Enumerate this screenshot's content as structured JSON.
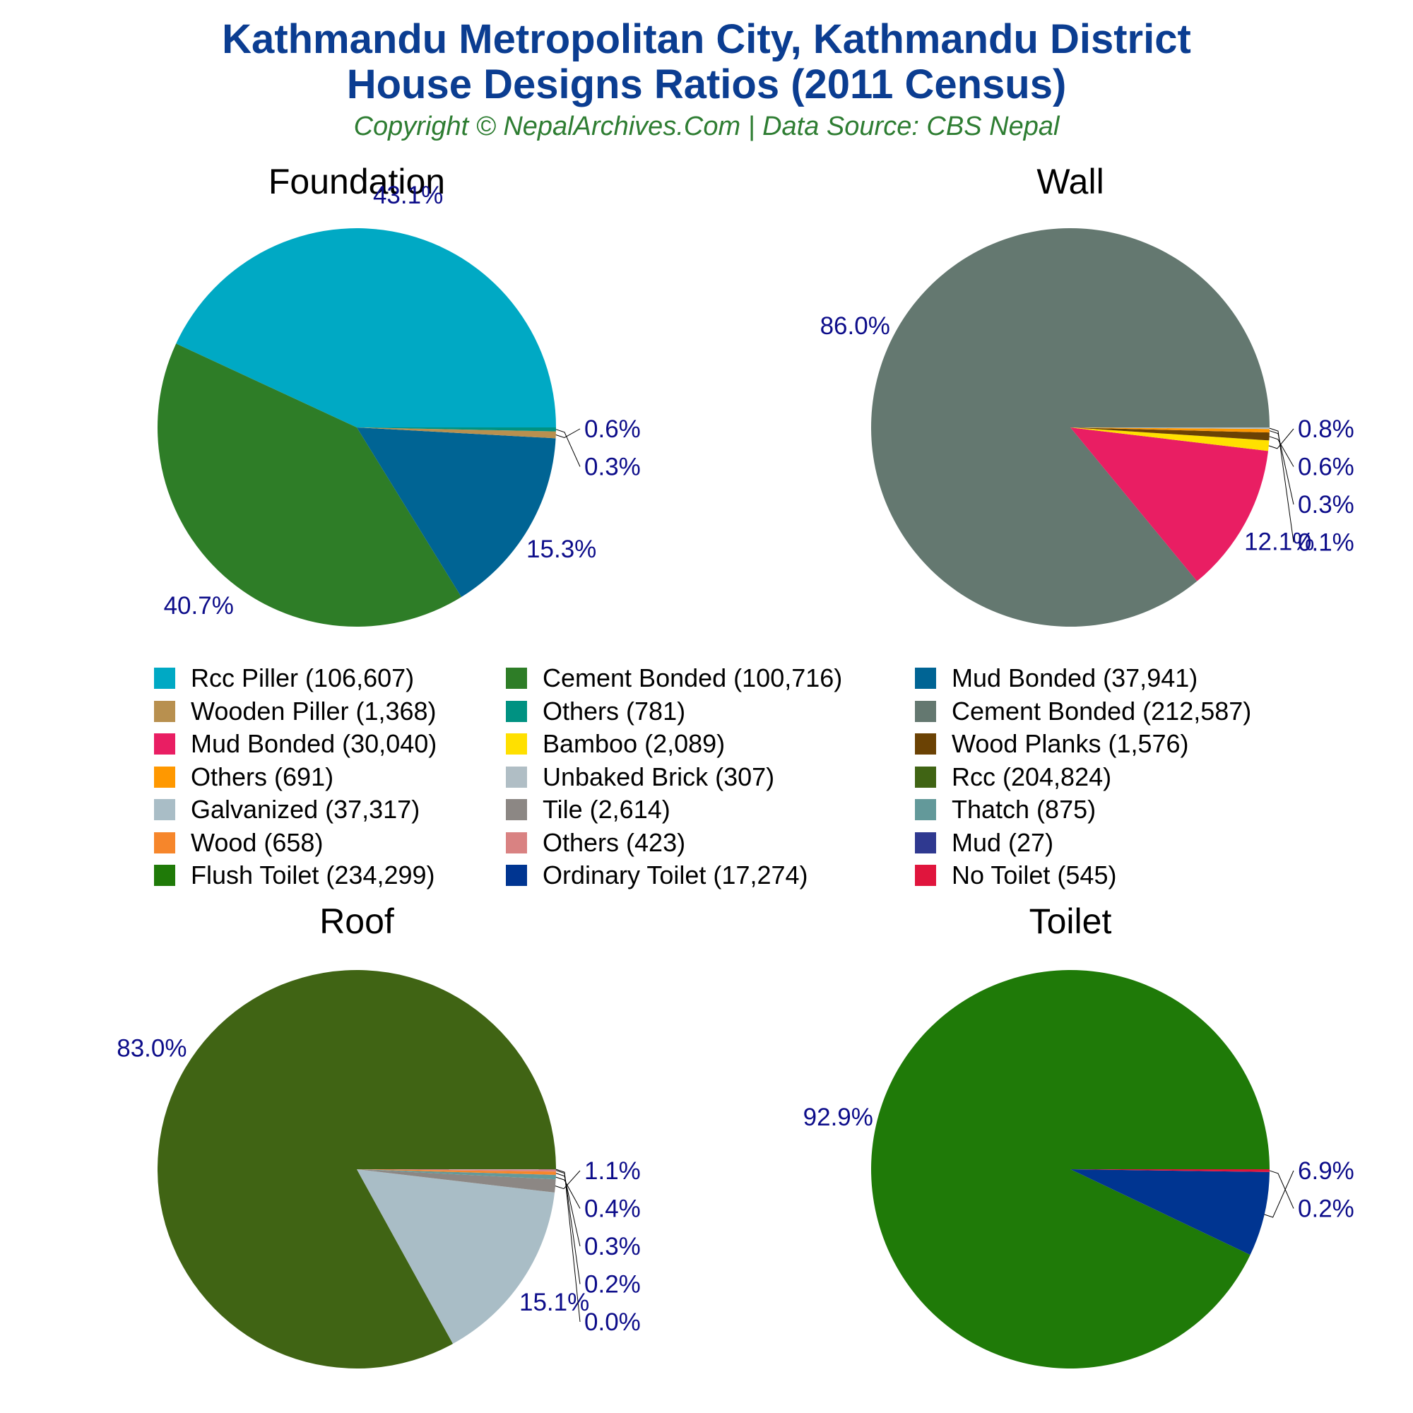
{
  "title_line1": "Kathmandu Metropolitan City, Kathmandu District",
  "title_line2": "House Designs Ratios (2011 Census)",
  "subtitle": "Copyright © NepalArchives.Com | Data Source: CBS Nepal",
  "chart_data": [
    {
      "type": "pie",
      "title": "Foundation",
      "slices": [
        {
          "label": "Rcc Piller (106,607)",
          "value": 106607,
          "pct": "43.1%",
          "color": "#00a9c4"
        },
        {
          "label": "Cement Bonded (100,716)",
          "value": 100716,
          "pct": "40.7%",
          "color": "#2e7d27"
        },
        {
          "label": "Mud Bonded (37,941)",
          "value": 37941,
          "pct": "15.3%",
          "color": "#006494"
        },
        {
          "label": "Wooden Piller (1,368)",
          "value": 1368,
          "pct": "0.6%",
          "color": "#b8904f"
        },
        {
          "label": "Others (781)",
          "value": 781,
          "pct": "0.3%",
          "color": "#009282"
        }
      ]
    },
    {
      "type": "pie",
      "title": "Wall",
      "slices": [
        {
          "label": "Cement Bonded (212,587)",
          "value": 212587,
          "pct": "86.0%",
          "color": "#647870"
        },
        {
          "label": "Mud Bonded (30,040)",
          "value": 30040,
          "pct": "12.1%",
          "color": "#e91e63"
        },
        {
          "label": "Bamboo (2,089)",
          "value": 2089,
          "pct": "0.8%",
          "color": "#ffe000"
        },
        {
          "label": "Wood Planks (1,576)",
          "value": 1576,
          "pct": "0.6%",
          "color": "#6b4204"
        },
        {
          "label": "Others (691)",
          "value": 691,
          "pct": "0.3%",
          "color": "#ff9800"
        },
        {
          "label": "Unbaked Brick (307)",
          "value": 307,
          "pct": "0.1%",
          "color": "#b0bec5"
        }
      ]
    },
    {
      "type": "pie",
      "title": "Roof",
      "slices": [
        {
          "label": "Rcc (204,824)",
          "value": 204824,
          "pct": "83.0%",
          "color": "#406414"
        },
        {
          "label": "Galvanized (37,317)",
          "value": 37317,
          "pct": "15.1%",
          "color": "#a9bdc6"
        },
        {
          "label": "Tile (2,614)",
          "value": 2614,
          "pct": "1.1%",
          "color": "#8c8784"
        },
        {
          "label": "Thatch (875)",
          "value": 875,
          "pct": "0.4%",
          "color": "#63999a"
        },
        {
          "label": "Wood (658)",
          "value": 658,
          "pct": "0.3%",
          "color": "#f6862b"
        },
        {
          "label": "Others (423)",
          "value": 423,
          "pct": "0.2%",
          "color": "#d98282"
        },
        {
          "label": "Mud (27)",
          "value": 27,
          "pct": "0.0%",
          "color": "#2f3990"
        }
      ]
    },
    {
      "type": "pie",
      "title": "Toilet",
      "slices": [
        {
          "label": "Flush Toilet (234,299)",
          "value": 234299,
          "pct": "92.9%",
          "color": "#1f7a08"
        },
        {
          "label": "Ordinary Toilet (17,274)",
          "value": 17274,
          "pct": "6.9%",
          "color": "#003591"
        },
        {
          "label": "No Toilet (545)",
          "value": 545,
          "pct": "0.2%",
          "color": "#e0153d"
        }
      ]
    }
  ],
  "legend": [
    {
      "label": "Rcc Piller (106,607)",
      "color": "#00a9c4"
    },
    {
      "label": "Cement Bonded (100,716)",
      "color": "#2e7d27"
    },
    {
      "label": "Mud Bonded (37,941)",
      "color": "#006494"
    },
    {
      "label": "Wooden Piller (1,368)",
      "color": "#b8904f"
    },
    {
      "label": "Others (781)",
      "color": "#009282"
    },
    {
      "label": "Cement Bonded (212,587)",
      "color": "#647870"
    },
    {
      "label": "Mud Bonded (30,040)",
      "color": "#e91e63"
    },
    {
      "label": "Bamboo (2,089)",
      "color": "#ffe000"
    },
    {
      "label": "Wood Planks (1,576)",
      "color": "#6b4204"
    },
    {
      "label": "Others (691)",
      "color": "#ff9800"
    },
    {
      "label": "Unbaked Brick (307)",
      "color": "#b0bec5"
    },
    {
      "label": "Rcc (204,824)",
      "color": "#406414"
    },
    {
      "label": "Galvanized (37,317)",
      "color": "#a9bdc6"
    },
    {
      "label": "Tile (2,614)",
      "color": "#8c8784"
    },
    {
      "label": "Thatch (875)",
      "color": "#63999a"
    },
    {
      "label": "Wood (658)",
      "color": "#f6862b"
    },
    {
      "label": "Others (423)",
      "color": "#d98282"
    },
    {
      "label": "Mud (27)",
      "color": "#2f3990"
    },
    {
      "label": "Flush Toilet (234,299)",
      "color": "#1f7a08"
    },
    {
      "label": "Ordinary Toilet (17,274)",
      "color": "#003591"
    },
    {
      "label": "No Toilet (545)",
      "color": "#e0153d"
    }
  ]
}
